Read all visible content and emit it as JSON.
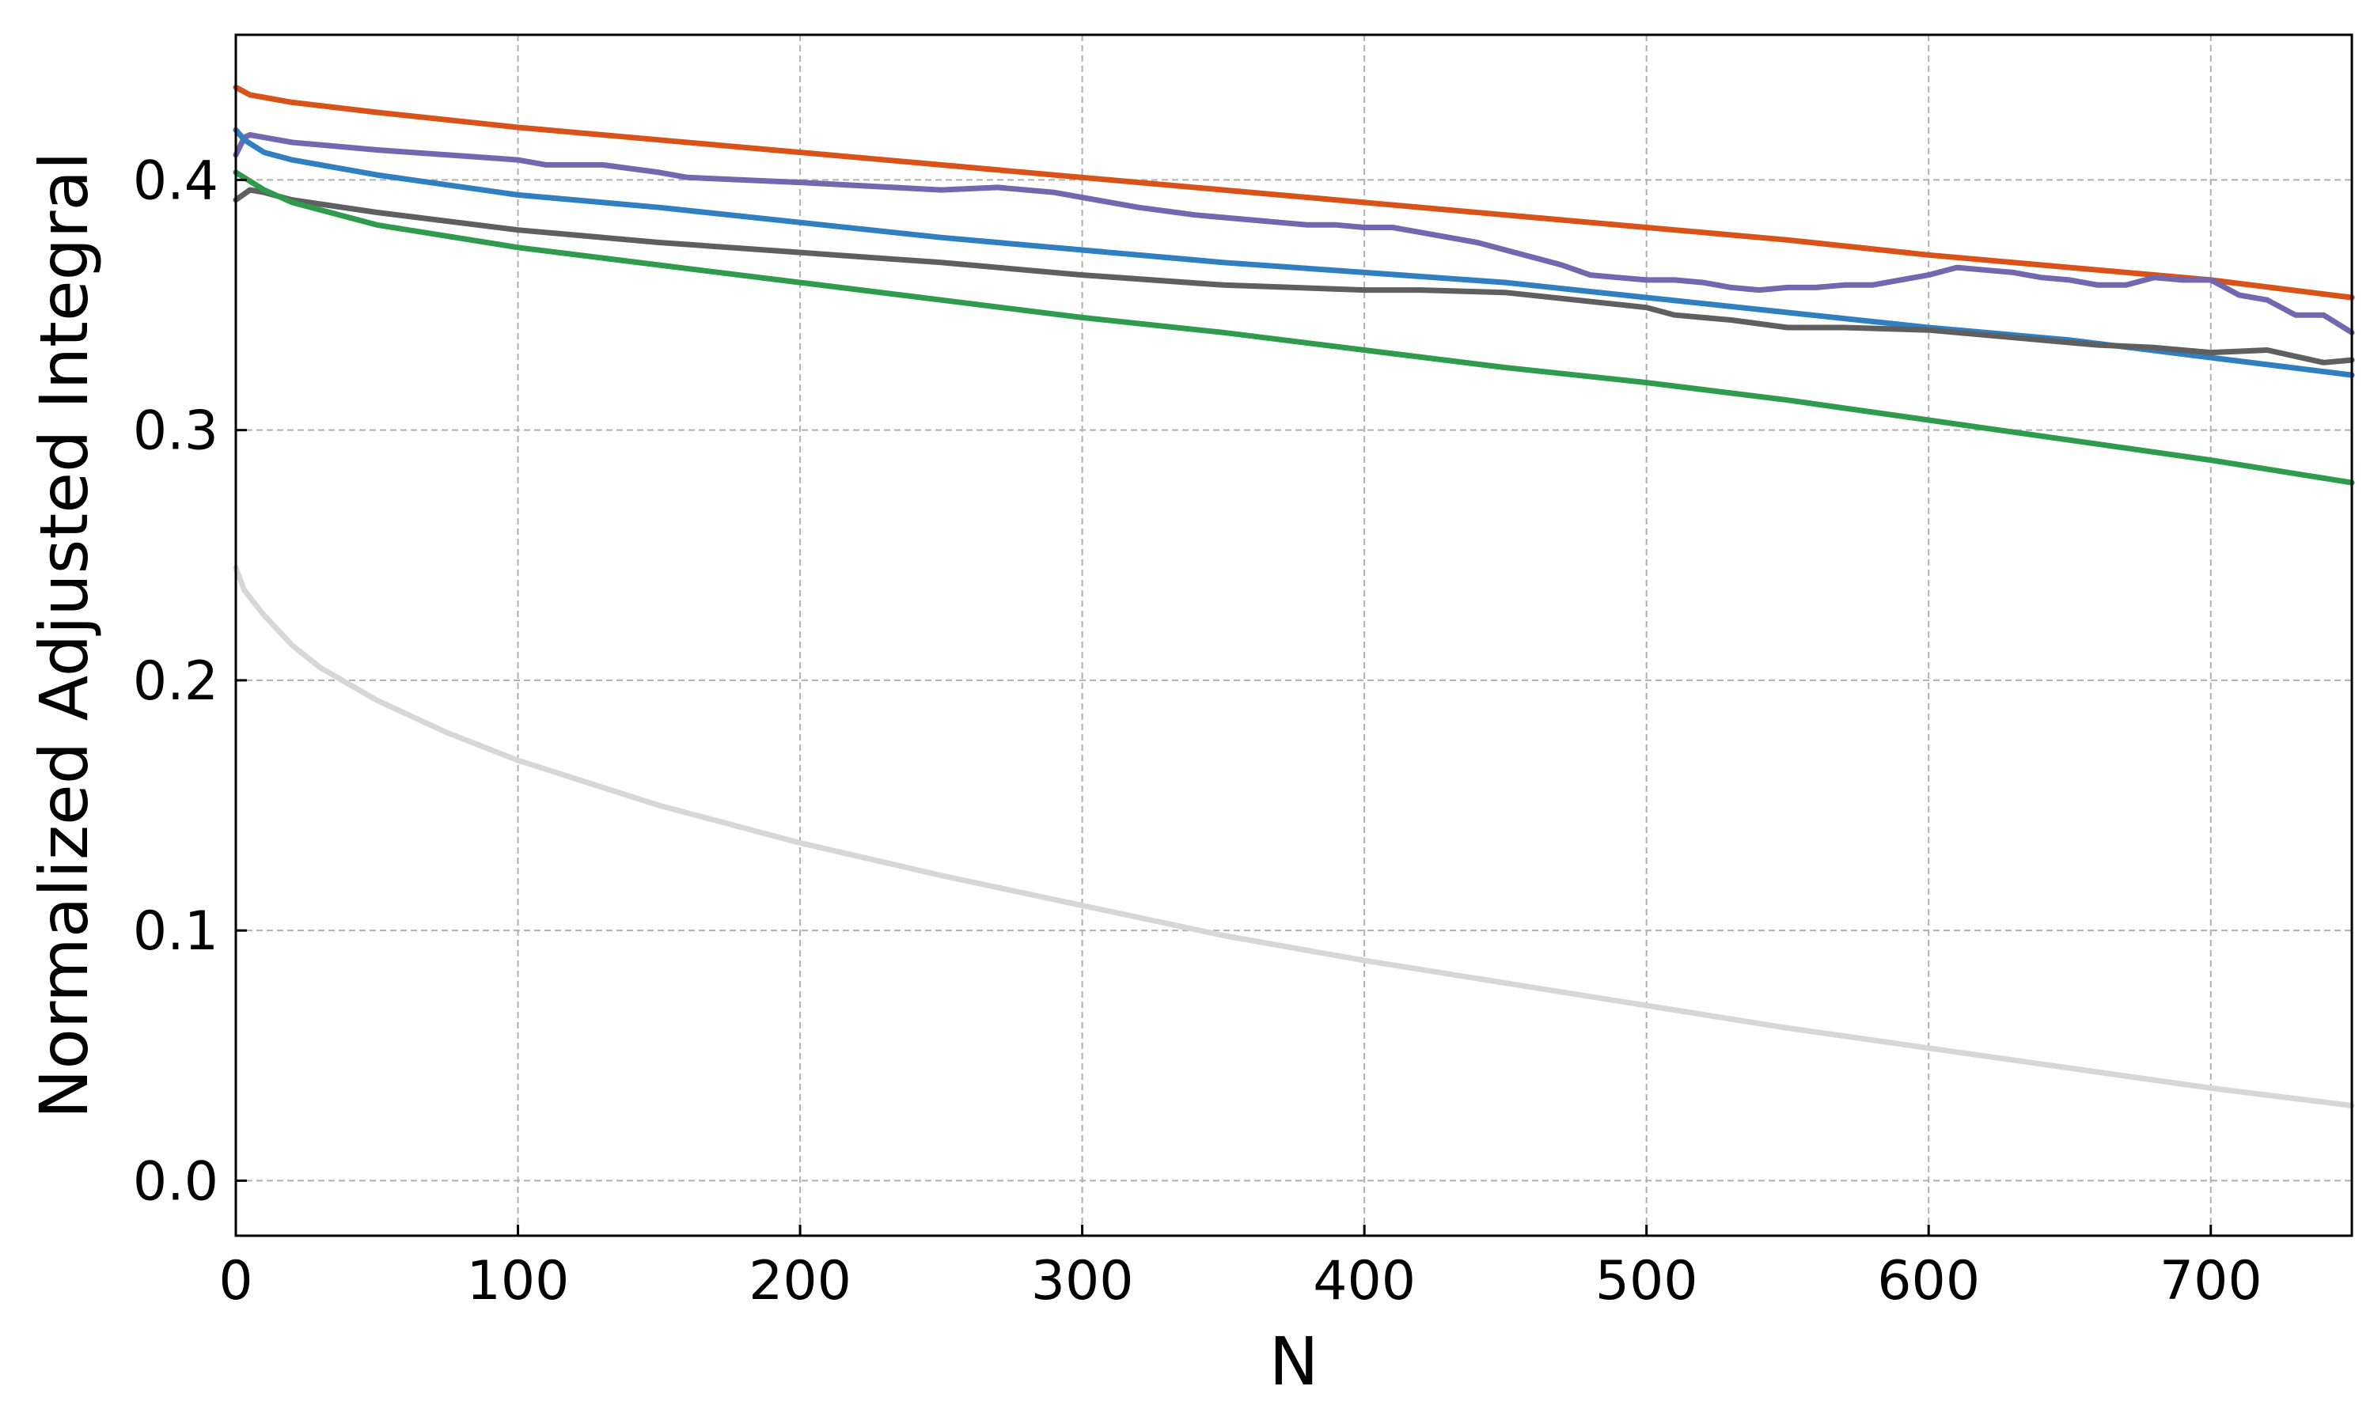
{
  "chart_data": {
    "type": "line",
    "xlabel": "N",
    "ylabel": "Normalized Adjusted Integral",
    "xlim": [
      0,
      750
    ],
    "ylim": [
      -0.022,
      0.458
    ],
    "xticks": [
      "0",
      "100",
      "200",
      "300",
      "400",
      "500",
      "600",
      "700"
    ],
    "yticks": [
      "0.0",
      "0.1",
      "0.2",
      "0.3",
      "0.4"
    ],
    "grid": true,
    "series": [
      {
        "color": "#d95319",
        "x": [
          0,
          5,
          10,
          20,
          50,
          100,
          150,
          200,
          250,
          300,
          350,
          400,
          450,
          500,
          550,
          600,
          650,
          700,
          750
        ],
        "y": [
          0.437,
          0.434,
          0.433,
          0.431,
          0.427,
          0.421,
          0.416,
          0.411,
          0.406,
          0.401,
          0.396,
          0.391,
          0.386,
          0.381,
          0.376,
          0.37,
          0.365,
          0.36,
          0.353
        ]
      },
      {
        "color": "#7367b0",
        "x": [
          0,
          3,
          5,
          10,
          20,
          50,
          100,
          110,
          130,
          150,
          160,
          200,
          250,
          270,
          290,
          300,
          320,
          340,
          350,
          360,
          370,
          380,
          390,
          400,
          410,
          420,
          430,
          440,
          450,
          460,
          470,
          480,
          490,
          500,
          510,
          520,
          530,
          540,
          550,
          560,
          570,
          580,
          590,
          600,
          610,
          620,
          630,
          640,
          650,
          660,
          670,
          680,
          690,
          700,
          710,
          720,
          730,
          740,
          750
        ],
        "y": [
          0.41,
          0.417,
          0.418,
          0.417,
          0.415,
          0.412,
          0.408,
          0.406,
          0.406,
          0.403,
          0.401,
          0.399,
          0.396,
          0.397,
          0.395,
          0.393,
          0.389,
          0.386,
          0.385,
          0.384,
          0.383,
          0.382,
          0.382,
          0.381,
          0.381,
          0.379,
          0.377,
          0.375,
          0.372,
          0.369,
          0.366,
          0.362,
          0.361,
          0.36,
          0.36,
          0.359,
          0.357,
          0.356,
          0.357,
          0.357,
          0.358,
          0.358,
          0.36,
          0.362,
          0.365,
          0.364,
          0.363,
          0.361,
          0.36,
          0.358,
          0.358,
          0.361,
          0.36,
          0.36,
          0.354,
          0.352,
          0.346,
          0.346,
          0.339
        ]
      },
      {
        "color": "#2f7fc1",
        "x": [
          0,
          3,
          10,
          20,
          50,
          100,
          150,
          200,
          250,
          300,
          350,
          400,
          450,
          500,
          550,
          600,
          650,
          700,
          750
        ],
        "y": [
          0.42,
          0.416,
          0.411,
          0.408,
          0.402,
          0.394,
          0.389,
          0.383,
          0.377,
          0.372,
          0.367,
          0.363,
          0.359,
          0.353,
          0.347,
          0.341,
          0.336,
          0.329,
          0.322
        ]
      },
      {
        "color": "#5f5f5f",
        "x": [
          0,
          5,
          10,
          20,
          50,
          100,
          150,
          200,
          250,
          300,
          350,
          400,
          420,
          450,
          500,
          510,
          530,
          550,
          570,
          600,
          630,
          650,
          660,
          680,
          700,
          720,
          740,
          750
        ],
        "y": [
          0.392,
          0.396,
          0.395,
          0.392,
          0.387,
          0.38,
          0.375,
          0.371,
          0.367,
          0.362,
          0.358,
          0.356,
          0.356,
          0.355,
          0.349,
          0.346,
          0.344,
          0.341,
          0.341,
          0.34,
          0.337,
          0.335,
          0.334,
          0.333,
          0.331,
          0.332,
          0.327,
          0.328
        ]
      },
      {
        "color": "#2e9c4c",
        "x": [
          0,
          10,
          20,
          50,
          100,
          150,
          200,
          250,
          300,
          350,
          400,
          450,
          500,
          550,
          600,
          650,
          700,
          750
        ],
        "y": [
          0.403,
          0.396,
          0.391,
          0.382,
          0.373,
          0.366,
          0.359,
          0.352,
          0.345,
          0.339,
          0.332,
          0.325,
          0.319,
          0.312,
          0.304,
          0.296,
          0.288,
          0.279
        ]
      },
      {
        "color": "#d7d7d7",
        "x": [
          0,
          3,
          10,
          20,
          30,
          50,
          75,
          100,
          150,
          200,
          250,
          300,
          350,
          400,
          450,
          500,
          550,
          600,
          650,
          700,
          750
        ],
        "y": [
          0.245,
          0.236,
          0.226,
          0.214,
          0.205,
          0.192,
          0.179,
          0.168,
          0.15,
          0.135,
          0.122,
          0.11,
          0.098,
          0.088,
          0.079,
          0.07,
          0.061,
          0.053,
          0.045,
          0.037,
          0.03
        ]
      }
    ]
  }
}
